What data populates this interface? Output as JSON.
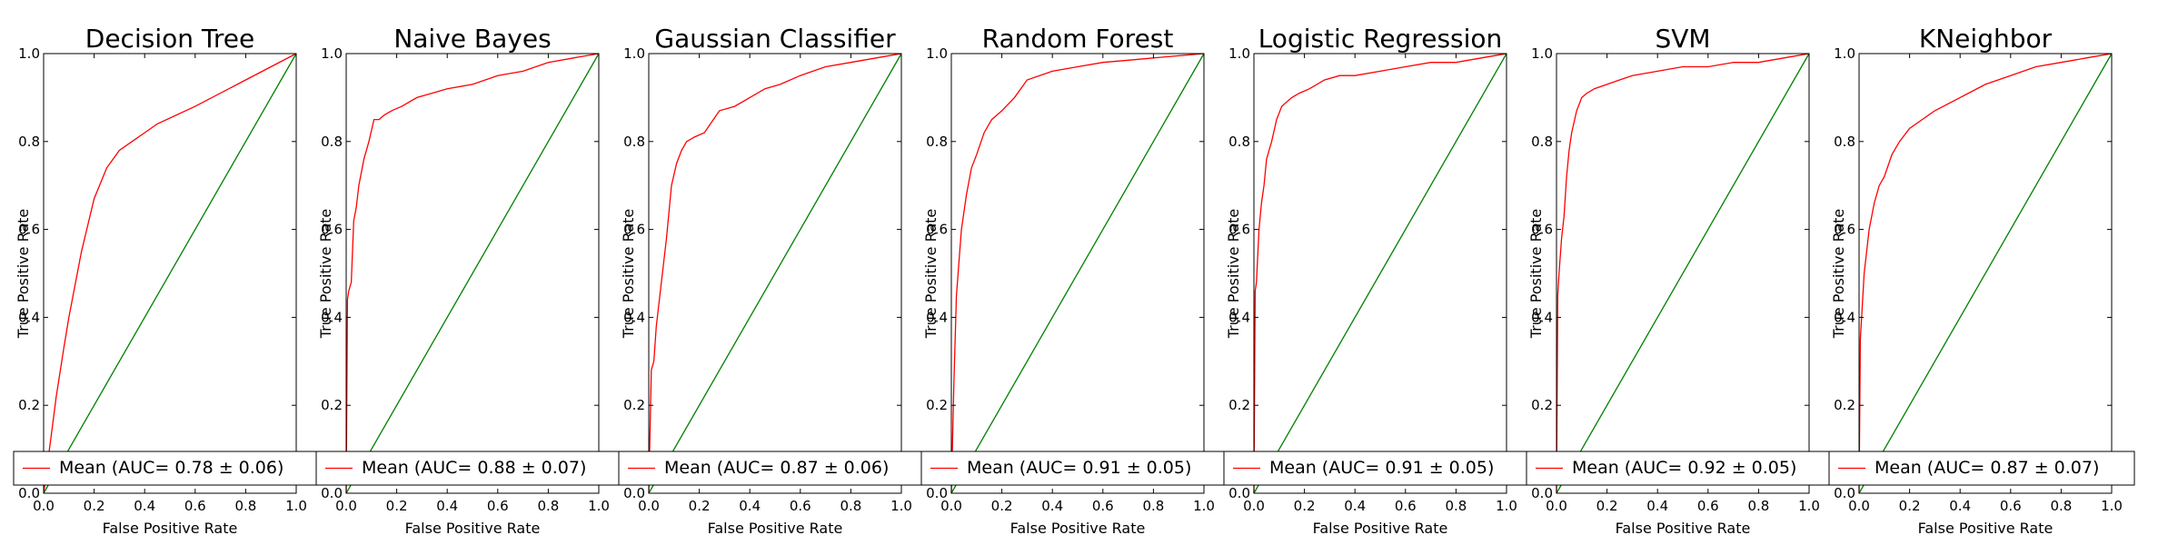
{
  "chart_data": [
    {
      "type": "line",
      "title": "Decision Tree",
      "xlabel": "False Positive Rate",
      "ylabel": "True Positive Rate",
      "xlim": [
        0.0,
        1.0
      ],
      "ylim": [
        0.0,
        1.0
      ],
      "xticks": [
        "0.0",
        "0.2",
        "0.4",
        "0.6",
        "0.8",
        "1.0"
      ],
      "yticks": [
        "0.0",
        "0.2",
        "0.4",
        "0.6",
        "0.8",
        "1.0"
      ],
      "grid": false,
      "legend": {
        "placement": "lower-right",
        "entries": [
          "Mean (AUC= 0.78 ± 0.06)"
        ]
      },
      "series": [
        {
          "name": "Mean (AUC= 0.78 ± 0.06)",
          "color": "#ff0000",
          "x": [
            0.0,
            0.03,
            0.05,
            0.08,
            0.1,
            0.15,
            0.2,
            0.25,
            0.3,
            0.35,
            0.4,
            0.45,
            0.6,
            0.8,
            1.0
          ],
          "y": [
            0.0,
            0.13,
            0.22,
            0.33,
            0.4,
            0.55,
            0.67,
            0.74,
            0.78,
            0.8,
            0.82,
            0.84,
            0.88,
            0.94,
            1.0
          ]
        },
        {
          "color": "#008000",
          "x": [
            0.0,
            1.0
          ],
          "y": [
            0.0,
            1.0
          ]
        }
      ]
    },
    {
      "type": "line",
      "title": "Naive Bayes",
      "xlabel": "False Positive Rate",
      "ylabel": "True Positive Rate",
      "xlim": [
        0.0,
        1.0
      ],
      "ylim": [
        0.0,
        1.0
      ],
      "xticks": [
        "0.0",
        "0.2",
        "0.4",
        "0.6",
        "0.8",
        "1.0"
      ],
      "yticks": [
        "0.0",
        "0.2",
        "0.4",
        "0.6",
        "0.8",
        "1.0"
      ],
      "grid": false,
      "legend": {
        "placement": "lower-right",
        "entries": [
          "Mean (AUC= 0.88 ± 0.07)"
        ]
      },
      "series": [
        {
          "name": "Mean (AUC= 0.88 ± 0.07)",
          "color": "#ff0000",
          "x": [
            0.0,
            0.005,
            0.01,
            0.02,
            0.03,
            0.04,
            0.05,
            0.07,
            0.09,
            0.11,
            0.13,
            0.15,
            0.18,
            0.22,
            0.28,
            0.34,
            0.4,
            0.5,
            0.6,
            0.7,
            0.8,
            0.9,
            1.0
          ],
          "y": [
            0.0,
            0.44,
            0.46,
            0.48,
            0.62,
            0.65,
            0.7,
            0.76,
            0.8,
            0.85,
            0.85,
            0.86,
            0.87,
            0.88,
            0.9,
            0.91,
            0.92,
            0.93,
            0.95,
            0.96,
            0.98,
            0.99,
            1.0
          ]
        },
        {
          "color": "#008000",
          "x": [
            0.0,
            1.0
          ],
          "y": [
            0.0,
            1.0
          ]
        }
      ]
    },
    {
      "type": "line",
      "title": "Gaussian Classifier",
      "xlabel": "False Positive Rate",
      "ylabel": "True Positive Rate",
      "xlim": [
        0.0,
        1.0
      ],
      "ylim": [
        0.0,
        1.0
      ],
      "xticks": [
        "0.0",
        "0.2",
        "0.4",
        "0.6",
        "0.8",
        "1.0"
      ],
      "yticks": [
        "0.0",
        "0.2",
        "0.4",
        "0.6",
        "0.8",
        "1.0"
      ],
      "grid": false,
      "legend": {
        "placement": "lower-right",
        "entries": [
          "Mean (AUC= 0.87 ± 0.06)"
        ]
      },
      "series": [
        {
          "name": "Mean (AUC= 0.87 ± 0.06)",
          "color": "#ff0000",
          "x": [
            0.0,
            0.01,
            0.02,
            0.03,
            0.05,
            0.07,
            0.09,
            0.11,
            0.13,
            0.15,
            0.18,
            0.22,
            0.28,
            0.34,
            0.4,
            0.46,
            0.52,
            0.6,
            0.7,
            0.8,
            0.9,
            1.0
          ],
          "y": [
            0.0,
            0.28,
            0.3,
            0.38,
            0.48,
            0.58,
            0.7,
            0.75,
            0.78,
            0.8,
            0.81,
            0.82,
            0.87,
            0.88,
            0.9,
            0.92,
            0.93,
            0.95,
            0.97,
            0.98,
            0.99,
            1.0
          ]
        },
        {
          "color": "#008000",
          "x": [
            0.0,
            1.0
          ],
          "y": [
            0.0,
            1.0
          ]
        }
      ]
    },
    {
      "type": "line",
      "title": "Random Forest",
      "xlabel": "False Positive Rate",
      "ylabel": "True Positive Rate",
      "xlim": [
        0.0,
        1.0
      ],
      "ylim": [
        0.0,
        1.0
      ],
      "xticks": [
        "0.0",
        "0.2",
        "0.4",
        "0.6",
        "0.8",
        "1.0"
      ],
      "yticks": [
        "0.0",
        "0.2",
        "0.4",
        "0.6",
        "0.8",
        "1.0"
      ],
      "grid": false,
      "legend": {
        "placement": "lower-right",
        "entries": [
          "Mean (AUC= 0.91 ± 0.05)"
        ]
      },
      "series": [
        {
          "name": "Mean (AUC= 0.91 ± 0.05)",
          "color": "#ff0000",
          "x": [
            0.0,
            0.01,
            0.02,
            0.04,
            0.06,
            0.08,
            0.1,
            0.13,
            0.16,
            0.2,
            0.25,
            0.3,
            0.4,
            0.5,
            0.6,
            0.7,
            0.8,
            0.9,
            1.0
          ],
          "y": [
            0.0,
            0.25,
            0.45,
            0.6,
            0.68,
            0.74,
            0.77,
            0.82,
            0.85,
            0.87,
            0.9,
            0.94,
            0.96,
            0.97,
            0.98,
            0.985,
            0.99,
            0.995,
            1.0
          ]
        },
        {
          "color": "#008000",
          "x": [
            0.0,
            1.0
          ],
          "y": [
            0.0,
            1.0
          ]
        }
      ]
    },
    {
      "type": "line",
      "title": "Logistic Regression",
      "xlabel": "False Positive Rate",
      "ylabel": "True Positive Rate",
      "xlim": [
        0.0,
        1.0
      ],
      "ylim": [
        0.0,
        1.0
      ],
      "xticks": [
        "0.0",
        "0.2",
        "0.4",
        "0.6",
        "0.8",
        "1.0"
      ],
      "yticks": [
        "0.0",
        "0.2",
        "0.4",
        "0.6",
        "0.8",
        "1.0"
      ],
      "grid": false,
      "legend": {
        "placement": "lower-right",
        "entries": [
          "Mean (AUC= 0.91 ± 0.05)"
        ]
      },
      "series": [
        {
          "name": "Mean (AUC= 0.91 ± 0.05)",
          "color": "#ff0000",
          "x": [
            0.0,
            0.005,
            0.01,
            0.02,
            0.03,
            0.04,
            0.05,
            0.07,
            0.09,
            0.11,
            0.13,
            0.15,
            0.18,
            0.22,
            0.28,
            0.34,
            0.4,
            0.5,
            0.6,
            0.7,
            0.8,
            0.9,
            1.0
          ],
          "y": [
            0.0,
            0.46,
            0.48,
            0.6,
            0.66,
            0.7,
            0.76,
            0.8,
            0.85,
            0.88,
            0.89,
            0.9,
            0.91,
            0.92,
            0.94,
            0.95,
            0.95,
            0.96,
            0.97,
            0.98,
            0.98,
            0.99,
            1.0
          ]
        },
        {
          "color": "#008000",
          "x": [
            0.0,
            1.0
          ],
          "y": [
            0.0,
            1.0
          ]
        }
      ]
    },
    {
      "type": "line",
      "title": "SVM",
      "xlabel": "False Positive Rate",
      "ylabel": "True Positive Rate",
      "xlim": [
        0.0,
        1.0
      ],
      "ylim": [
        0.0,
        1.0
      ],
      "xticks": [
        "0.0",
        "0.2",
        "0.4",
        "0.6",
        "0.8",
        "1.0"
      ],
      "yticks": [
        "0.0",
        "0.2",
        "0.4",
        "0.6",
        "0.8",
        "1.0"
      ],
      "grid": false,
      "legend": {
        "placement": "lower-right",
        "entries": [
          "Mean (AUC= 0.92 ± 0.05)"
        ]
      },
      "series": [
        {
          "name": "Mean (AUC= 0.92 ± 0.05)",
          "color": "#ff0000",
          "x": [
            0.0,
            0.005,
            0.01,
            0.02,
            0.03,
            0.04,
            0.05,
            0.06,
            0.08,
            0.1,
            0.12,
            0.15,
            0.2,
            0.25,
            0.3,
            0.4,
            0.5,
            0.6,
            0.7,
            0.8,
            0.9,
            1.0
          ],
          "y": [
            0.0,
            0.45,
            0.5,
            0.58,
            0.63,
            0.72,
            0.78,
            0.82,
            0.87,
            0.9,
            0.91,
            0.92,
            0.93,
            0.94,
            0.95,
            0.96,
            0.97,
            0.97,
            0.98,
            0.98,
            0.99,
            1.0
          ]
        },
        {
          "color": "#008000",
          "x": [
            0.0,
            1.0
          ],
          "y": [
            0.0,
            1.0
          ]
        }
      ]
    },
    {
      "type": "line",
      "title": "KNeighbor",
      "xlabel": "False Positive Rate",
      "ylabel": "True Positive Rate",
      "xlim": [
        0.0,
        1.0
      ],
      "ylim": [
        0.0,
        1.0
      ],
      "xticks": [
        "0.0",
        "0.2",
        "0.4",
        "0.6",
        "0.8",
        "1.0"
      ],
      "yticks": [
        "0.0",
        "0.2",
        "0.4",
        "0.6",
        "0.8",
        "1.0"
      ],
      "grid": false,
      "legend": {
        "placement": "lower-right",
        "entries": [
          "Mean (AUC= 0.87 ± 0.07)"
        ]
      },
      "series": [
        {
          "name": "Mean (AUC= 0.87 ± 0.07)",
          "color": "#ff0000",
          "x": [
            0.0,
            0.005,
            0.01,
            0.02,
            0.04,
            0.06,
            0.08,
            0.1,
            0.13,
            0.16,
            0.2,
            0.25,
            0.3,
            0.4,
            0.5,
            0.6,
            0.7,
            0.8,
            0.9,
            1.0
          ],
          "y": [
            0.0,
            0.35,
            0.4,
            0.5,
            0.6,
            0.66,
            0.7,
            0.72,
            0.77,
            0.8,
            0.83,
            0.85,
            0.87,
            0.9,
            0.93,
            0.95,
            0.97,
            0.98,
            0.99,
            1.0
          ]
        },
        {
          "color": "#008000",
          "x": [
            0.0,
            1.0
          ],
          "y": [
            0.0,
            1.0
          ]
        }
      ]
    }
  ]
}
